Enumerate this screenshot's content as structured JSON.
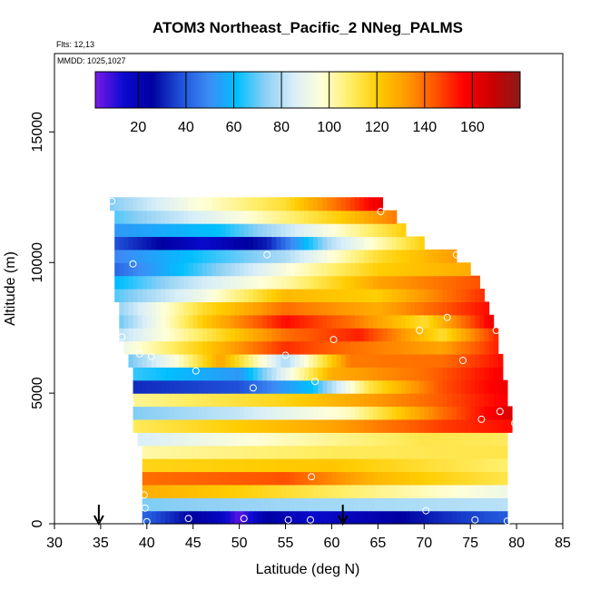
{
  "chart_data": {
    "type": "heatmap",
    "title": "ATOM3 Northeast_Pacific_2 NNeg_PALMS",
    "subtitle_flights": "Flts: 12,13",
    "subtitle_dates": "MMDD: 1025,1027",
    "xlabel": "Latitude (deg N)",
    "ylabel": "Altitude (m)",
    "xlim": [
      30,
      85
    ],
    "ylim": [
      0,
      18000
    ],
    "x_ticks": [
      30,
      35,
      40,
      45,
      50,
      55,
      60,
      65,
      70,
      75,
      80,
      85
    ],
    "y_ticks": [
      0,
      5000,
      10000,
      15000
    ],
    "colorbar": {
      "range": [
        2,
        180
      ],
      "ticks": [
        20,
        40,
        60,
        80,
        100,
        120,
        140,
        160
      ],
      "colors": [
        "#7a1ae8",
        "#0a0ad0",
        "#0000a0",
        "#1f4fd8",
        "#3c8cf5",
        "#00bfff",
        "#8ccff5",
        "#d8eef8",
        "#ffffd8",
        "#ffee66",
        "#ffcc00",
        "#ff9900",
        "#ff5500",
        "#ff0000",
        "#cc0000",
        "#8b1a1a"
      ]
    },
    "altitude_bands": [
      {
        "alt": [
          0,
          500
        ],
        "xmin": 39.5,
        "xmax": 79,
        "values": [
          [
            39.5,
            42
          ],
          [
            44,
            28
          ],
          [
            48,
            18
          ],
          [
            50,
            5
          ],
          [
            53,
            25
          ],
          [
            58,
            15
          ],
          [
            65,
            22
          ],
          [
            72,
            32
          ],
          [
            79,
            40
          ]
        ]
      },
      {
        "alt": [
          500,
          1000
        ],
        "xmin": 39.5,
        "xmax": 79,
        "values": [
          [
            39.5,
            72
          ],
          [
            55,
            76
          ],
          [
            79,
            80
          ]
        ]
      },
      {
        "alt": [
          1000,
          1500
        ],
        "xmin": 39.5,
        "xmax": 79,
        "values": [
          [
            39.5,
            128
          ],
          [
            50,
            120
          ],
          [
            60,
            110
          ],
          [
            70,
            100
          ],
          [
            79,
            92
          ]
        ]
      },
      {
        "alt": [
          1500,
          2000
        ],
        "xmin": 39.5,
        "xmax": 79,
        "values": [
          [
            39.5,
            140
          ],
          [
            55,
            145
          ],
          [
            65,
            125
          ],
          [
            79,
            112
          ]
        ]
      },
      {
        "alt": [
          2000,
          2500
        ],
        "xmin": 39.5,
        "xmax": 79,
        "values": [
          [
            39.5,
            118
          ],
          [
            60,
            122
          ],
          [
            79,
            108
          ]
        ]
      },
      {
        "alt": [
          2500,
          3000
        ],
        "xmin": 39.5,
        "xmax": 79,
        "values": [
          [
            39.5,
            102
          ],
          [
            60,
            110
          ],
          [
            79,
            112
          ]
        ]
      },
      {
        "alt": [
          3000,
          3500
        ],
        "xmin": 39,
        "xmax": 79,
        "values": [
          [
            39,
            85
          ],
          [
            55,
            100
          ],
          [
            70,
            112
          ],
          [
            79,
            110
          ]
        ]
      },
      {
        "alt": [
          3500,
          4000
        ],
        "xmin": 38.5,
        "xmax": 79.5,
        "values": [
          [
            38.5,
            110
          ],
          [
            60,
            130
          ],
          [
            72,
            148
          ],
          [
            79.5,
            155
          ]
        ]
      },
      {
        "alt": [
          4000,
          4500
        ],
        "xmin": 38.5,
        "xmax": 79.5,
        "values": [
          [
            38.5,
            72
          ],
          [
            50,
            82
          ],
          [
            62,
            100
          ],
          [
            72,
            140
          ],
          [
            79.5,
            165
          ]
        ]
      },
      {
        "alt": [
          4500,
          5000
        ],
        "xmin": 38.5,
        "xmax": 79,
        "values": [
          [
            38.5,
            104
          ],
          [
            55,
            118
          ],
          [
            70,
            140
          ],
          [
            79,
            158
          ]
        ]
      },
      {
        "alt": [
          5000,
          5500
        ],
        "xmin": 38.5,
        "xmax": 79,
        "values": [
          [
            38.5,
            32
          ],
          [
            50,
            38
          ],
          [
            58,
            62
          ],
          [
            64,
            112
          ],
          [
            72,
            145
          ],
          [
            79,
            160
          ]
        ]
      },
      {
        "alt": [
          5500,
          6000
        ],
        "xmin": 38.5,
        "xmax": 78.5,
        "values": [
          [
            38.5,
            66
          ],
          [
            50,
            52
          ],
          [
            60,
            128
          ],
          [
            70,
            140
          ],
          [
            78.5,
            158
          ]
        ]
      },
      {
        "alt": [
          6000,
          6500
        ],
        "xmin": 38,
        "xmax": 78.5,
        "values": [
          [
            38,
            70
          ],
          [
            43,
            95
          ],
          [
            48,
            130
          ],
          [
            55,
            78
          ],
          [
            62,
            138
          ],
          [
            72,
            140
          ],
          [
            78.5,
            155
          ]
        ]
      },
      {
        "alt": [
          6500,
          7000
        ],
        "xmin": 37.5,
        "xmax": 78,
        "values": [
          [
            37.5,
            92
          ],
          [
            46,
            120
          ],
          [
            55,
            150
          ],
          [
            62,
            140
          ],
          [
            72,
            130
          ],
          [
            78,
            152
          ]
        ]
      },
      {
        "alt": [
          7000,
          7500
        ],
        "xmin": 37,
        "xmax": 78,
        "values": [
          [
            37,
            80
          ],
          [
            46,
            110
          ],
          [
            55,
            140
          ],
          [
            63,
            152
          ],
          [
            72,
            115
          ],
          [
            78,
            152
          ]
        ]
      },
      {
        "alt": [
          7500,
          8000
        ],
        "xmin": 37,
        "xmax": 77.5,
        "values": [
          [
            37,
            70
          ],
          [
            46,
            120
          ],
          [
            55,
            155
          ],
          [
            62,
            140
          ],
          [
            70,
            115
          ],
          [
            77.5,
            160
          ]
        ]
      },
      {
        "alt": [
          8000,
          8500
        ],
        "xmin": 37,
        "xmax": 77,
        "values": [
          [
            37,
            75
          ],
          [
            46,
            115
          ],
          [
            55,
            140
          ],
          [
            65,
            128
          ],
          [
            77,
            155
          ]
        ]
      },
      {
        "alt": [
          8500,
          9000
        ],
        "xmin": 36.5,
        "xmax": 76.5,
        "values": [
          [
            36.5,
            68
          ],
          [
            46,
            92
          ],
          [
            55,
            125
          ],
          [
            65,
            120
          ],
          [
            76.5,
            150
          ]
        ]
      },
      {
        "alt": [
          9000,
          9500
        ],
        "xmin": 36.5,
        "xmax": 76,
        "values": [
          [
            36.5,
            60
          ],
          [
            45,
            82
          ],
          [
            55,
            102
          ],
          [
            65,
            130
          ],
          [
            76,
            145
          ]
        ]
      },
      {
        "alt": [
          9500,
          10000
        ],
        "xmin": 36.5,
        "xmax": 75,
        "values": [
          [
            36.5,
            42
          ],
          [
            45,
            65
          ],
          [
            55,
            95
          ],
          [
            65,
            120
          ],
          [
            75,
            128
          ]
        ]
      },
      {
        "alt": [
          10000,
          10500
        ],
        "xmin": 36.5,
        "xmax": 73.5,
        "values": [
          [
            36.5,
            48
          ],
          [
            45,
            62
          ],
          [
            55,
            78
          ],
          [
            65,
            115
          ],
          [
            73.5,
            132
          ]
        ]
      },
      {
        "alt": [
          10500,
          11000
        ],
        "xmin": 36.5,
        "xmax": 70,
        "values": [
          [
            36.5,
            38
          ],
          [
            46,
            15
          ],
          [
            53,
            30
          ],
          [
            60,
            80
          ],
          [
            70,
            120
          ]
        ]
      },
      {
        "alt": [
          11000,
          11500
        ],
        "xmin": 36.5,
        "xmax": 68,
        "values": [
          [
            36.5,
            52
          ],
          [
            48,
            62
          ],
          [
            58,
            90
          ],
          [
            68,
            120
          ]
        ]
      },
      {
        "alt": [
          11500,
          12000
        ],
        "xmin": 36.5,
        "xmax": 67,
        "values": [
          [
            36.5,
            68
          ],
          [
            50,
            95
          ],
          [
            60,
            118
          ],
          [
            67,
            138
          ]
        ]
      },
      {
        "alt": [
          12000,
          12500
        ],
        "xmin": 36,
        "xmax": 65.5,
        "values": [
          [
            36,
            72
          ],
          [
            45,
            95
          ],
          [
            55,
            115
          ],
          [
            65.5,
            162
          ]
        ]
      }
    ],
    "sample_points": [
      [
        36.2,
        12350
      ],
      [
        65.3,
        11950
      ],
      [
        53,
        10300
      ],
      [
        73.5,
        10300
      ],
      [
        38.5,
        9950
      ],
      [
        72.5,
        7900
      ],
      [
        69.5,
        7400
      ],
      [
        37.3,
        7150
      ],
      [
        60.2,
        7050
      ],
      [
        77.8,
        7400
      ],
      [
        39.2,
        6500
      ],
      [
        40.5,
        6400
      ],
      [
        55,
        6450
      ],
      [
        74.2,
        6250
      ],
      [
        45.3,
        5850
      ],
      [
        58.2,
        5450
      ],
      [
        51.5,
        5200
      ],
      [
        38.2,
        4600
      ],
      [
        76.2,
        4000
      ],
      [
        78.2,
        4300
      ],
      [
        79.8,
        3850
      ],
      [
        57.8,
        1800
      ],
      [
        39.7,
        1100
      ],
      [
        39.8,
        600
      ],
      [
        70.2,
        500
      ],
      [
        44.5,
        200
      ],
      [
        50.5,
        200
      ],
      [
        55.3,
        150
      ],
      [
        57.7,
        150
      ],
      [
        75.5,
        150
      ],
      [
        79,
        100
      ],
      [
        40,
        80
      ]
    ],
    "flight_arrows": [
      34.8,
      61.2
    ],
    "grid": false,
    "legend": "colorbar-top-inset"
  }
}
